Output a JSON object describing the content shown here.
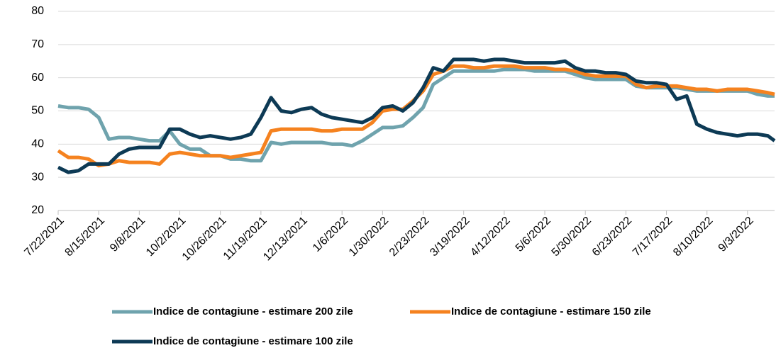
{
  "chart_data": {
    "type": "line",
    "x": [
      "7/22/2021",
      "7/28/2021",
      "8/3/2021",
      "8/9/2021",
      "8/15/2021",
      "8/21/2021",
      "8/27/2021",
      "9/2/2021",
      "9/8/2021",
      "9/14/2021",
      "9/20/2021",
      "9/26/2021",
      "10/2/2021",
      "10/8/2021",
      "10/14/2021",
      "10/20/2021",
      "10/26/2021",
      "11/1/2021",
      "11/7/2021",
      "11/13/2021",
      "11/19/2021",
      "11/25/2021",
      "12/1/2021",
      "12/7/2021",
      "12/13/2021",
      "12/19/2021",
      "12/25/2021",
      "12/31/2021",
      "1/6/2022",
      "1/12/2022",
      "1/18/2022",
      "1/24/2022",
      "1/30/2022",
      "2/5/2022",
      "2/11/2022",
      "2/17/2022",
      "2/23/2022",
      "3/1/2022",
      "3/7/2022",
      "3/13/2022",
      "3/19/2022",
      "3/25/2022",
      "3/31/2022",
      "4/6/2022",
      "4/12/2022",
      "4/18/2022",
      "4/24/2022",
      "4/30/2022",
      "5/6/2022",
      "5/12/2022",
      "5/18/2022",
      "5/24/2022",
      "5/30/2022",
      "6/5/2022",
      "6/11/2022",
      "6/17/2022",
      "6/23/2022",
      "6/29/2022",
      "7/5/2022",
      "7/11/2022",
      "7/17/2022",
      "7/23/2022",
      "7/29/2022",
      "8/4/2022",
      "8/10/2022",
      "8/16/2022",
      "8/22/2022",
      "8/28/2022",
      "9/3/2022",
      "9/9/2022",
      "9/15/2022",
      "9/19/2022"
    ],
    "series": [
      {
        "name": "Indice de contagiune - estimare 200 zile",
        "color": "#6fa3ad",
        "values": [
          51.5,
          51,
          51,
          50.5,
          48,
          41.5,
          42,
          42,
          41.5,
          41,
          41,
          44,
          40,
          38.5,
          38.5,
          36.5,
          36.5,
          35.5,
          35.5,
          35,
          35,
          40.5,
          40,
          40.5,
          40.5,
          40.5,
          40.5,
          40,
          40,
          39.5,
          41,
          43,
          45,
          45,
          45.5,
          48,
          51,
          58,
          60,
          62,
          62,
          62,
          62,
          62,
          62.5,
          62.5,
          62.5,
          62,
          62,
          62,
          62,
          61,
          60,
          59.5,
          59.5,
          59.5,
          59.5,
          57.5,
          57,
          57,
          57,
          57,
          56.5,
          56,
          56,
          56,
          56,
          56,
          56,
          55,
          54.5,
          54.5
        ]
      },
      {
        "name": "Indice de contagiune - estimare 150 zile",
        "color": "#f5821f",
        "values": [
          38,
          36,
          36,
          35.5,
          33.5,
          34,
          35,
          34.5,
          34.5,
          34.5,
          34,
          37,
          37.5,
          37,
          36.5,
          36.5,
          36.5,
          36,
          36.5,
          37,
          37.5,
          44,
          44.5,
          44.5,
          44.5,
          44.5,
          44,
          44,
          44.5,
          44.5,
          44.5,
          46.5,
          50,
          50.5,
          50.5,
          53,
          56,
          61,
          62,
          63.5,
          63.5,
          63,
          63,
          63.5,
          63.5,
          63.5,
          63,
          63,
          63,
          62.5,
          62.5,
          62,
          61,
          60.5,
          60.5,
          60.5,
          60.5,
          58,
          57,
          57.5,
          57.5,
          57.5,
          57,
          56.5,
          56.5,
          56,
          56.5,
          56.5,
          56.5,
          56,
          55.5,
          55
        ]
      },
      {
        "name": "Indice de contagiune - estimare 100 zile",
        "color": "#0d3a55",
        "values": [
          33,
          31.5,
          32,
          34,
          34,
          34,
          37,
          38.5,
          39,
          39,
          39,
          44.5,
          44.5,
          43,
          42,
          42.5,
          42,
          41.5,
          42,
          43,
          48,
          54,
          50,
          49.5,
          50.5,
          51,
          49,
          48,
          47.5,
          47,
          46.5,
          48,
          51,
          51.5,
          50,
          52.5,
          57,
          63,
          62,
          65.5,
          65.5,
          65.5,
          65,
          65.5,
          65.5,
          65,
          64.5,
          64.5,
          64.5,
          64.5,
          65,
          63,
          62,
          62,
          61.5,
          61.5,
          61,
          59,
          58.5,
          58.5,
          58,
          53.5,
          54.5,
          46,
          44.5,
          43.5,
          43,
          42.5,
          43,
          43,
          42.5,
          41
        ]
      }
    ],
    "xlim": [
      "7/22/2021",
      "9/19/2022"
    ],
    "xticks": [
      "7/22/2021",
      "8/15/2021",
      "9/8/2021",
      "10/2/2021",
      "10/26/2021",
      "11/19/2021",
      "12/13/2021",
      "1/6/2022",
      "1/30/2022",
      "2/23/2022",
      "3/19/2022",
      "4/12/2022",
      "5/6/2022",
      "5/30/2022",
      "6/23/2022",
      "7/17/2022",
      "8/10/2022",
      "9/3/2022"
    ],
    "ylim": [
      20,
      80
    ],
    "yticks": [
      20,
      30,
      40,
      50,
      60,
      70,
      80
    ],
    "grid": true,
    "legend": "bottom"
  }
}
